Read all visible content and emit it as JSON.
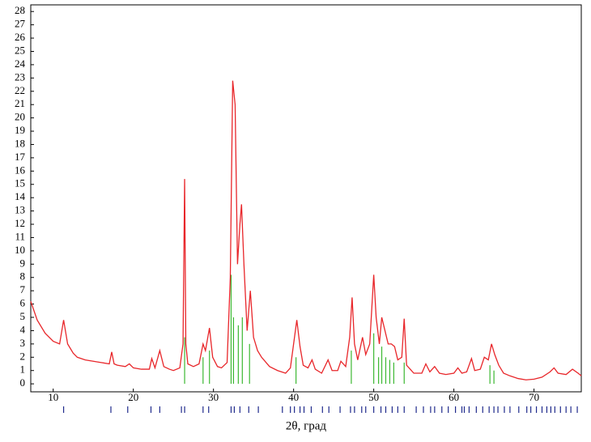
{
  "chart_data": {
    "type": "line",
    "xlabel": "2θ, град",
    "xlim": [
      7.2,
      75.9
    ],
    "ylim": [
      -0.6,
      28.5
    ],
    "xticks": [
      10,
      20,
      30,
      40,
      50,
      60,
      70
    ],
    "yticks": [
      0,
      1,
      2,
      3,
      4,
      5,
      6,
      7,
      8,
      9,
      10,
      11,
      12,
      13,
      14,
      15,
      16,
      17,
      18,
      19,
      20,
      21,
      22,
      23,
      24,
      25,
      26,
      27,
      28
    ],
    "series": [
      {
        "type": "line",
        "color": "#e8262a",
        "x": [
          7.2,
          8,
          9,
          10,
          10.8,
          11.3,
          11.8,
          12.5,
          13,
          14,
          15,
          16,
          17,
          17.3,
          17.6,
          18,
          19,
          19.5,
          20,
          21,
          22,
          22.3,
          22.7,
          23.3,
          23.8,
          24.5,
          25,
          25.8,
          26.2,
          26.4,
          26.55,
          26.8,
          27.5,
          28.2,
          28.7,
          29.0,
          29.5,
          29.9,
          30.5,
          31,
          31.7,
          32.1,
          32.4,
          32.7,
          33.0,
          33.3,
          33.5,
          33.8,
          34.2,
          34.6,
          35.0,
          35.5,
          36,
          37,
          38,
          39,
          39.6,
          40.0,
          40.4,
          40.8,
          41.2,
          41.8,
          42.3,
          42.7,
          43.5,
          44.3,
          44.8,
          45.5,
          45.9,
          46.5,
          47.0,
          47.3,
          47.6,
          48.0,
          48.6,
          49.0,
          49.5,
          50.0,
          50.3,
          50.7,
          51.0,
          51.4,
          51.8,
          52.2,
          52.6,
          53.0,
          53.5,
          53.8,
          54.1,
          55,
          56,
          56.5,
          57,
          57.6,
          58.2,
          59,
          60,
          60.5,
          61,
          61.6,
          62.2,
          62.6,
          63.3,
          63.8,
          64.3,
          64.7,
          65.1,
          65.6,
          66.2,
          67,
          68,
          69,
          70,
          71,
          72,
          72.5,
          73,
          74,
          74.8,
          75.5,
          75.9
        ],
        "values": [
          6.2,
          4.8,
          3.8,
          3.2,
          3.0,
          4.8,
          3.0,
          2.3,
          2.0,
          1.8,
          1.7,
          1.6,
          1.5,
          2.4,
          1.5,
          1.4,
          1.3,
          1.5,
          1.2,
          1.1,
          1.1,
          1.9,
          1.2,
          2.5,
          1.3,
          1.1,
          1.0,
          1.2,
          3.0,
          15.4,
          3.0,
          1.5,
          1.3,
          1.5,
          3.0,
          2.5,
          4.2,
          2.0,
          1.3,
          1.2,
          1.6,
          8.0,
          22.8,
          21.0,
          9.0,
          12.0,
          13.5,
          9.0,
          4.0,
          7.0,
          3.5,
          2.5,
          2.0,
          1.3,
          1.0,
          0.8,
          1.2,
          3.0,
          4.8,
          2.8,
          1.4,
          1.2,
          1.8,
          1.1,
          0.8,
          1.8,
          1.0,
          1.0,
          1.7,
          1.3,
          3.5,
          6.5,
          3.0,
          1.8,
          3.5,
          2.2,
          3.0,
          8.2,
          5.0,
          3.0,
          5.0,
          4.0,
          3.0,
          3.0,
          2.8,
          1.8,
          2.0,
          4.9,
          1.4,
          0.8,
          0.8,
          1.5,
          0.9,
          1.3,
          0.8,
          0.7,
          0.8,
          1.2,
          0.8,
          0.9,
          1.9,
          1.0,
          1.1,
          2.0,
          1.8,
          3.0,
          2.2,
          1.4,
          0.8,
          0.6,
          0.4,
          0.3,
          0.35,
          0.5,
          0.9,
          1.2,
          0.8,
          0.7,
          1.1,
          0.8,
          0.6
        ]
      },
      {
        "type": "stick",
        "color": "#3cb832",
        "x": [
          26.4,
          28.7,
          29.5,
          32.2,
          32.5,
          33.1,
          33.6,
          34.5,
          40.3,
          47.2,
          50.0,
          50.6,
          51.0,
          51.5,
          52.0,
          52.5,
          53.8,
          64.5,
          65.0
        ],
        "values": [
          3.5,
          2.0,
          2.5,
          8.2,
          5.0,
          4.4,
          5.0,
          3.0,
          2.0,
          2.5,
          3.8,
          2.0,
          2.8,
          2.0,
          1.8,
          1.6,
          1.6,
          1.4,
          1.0
        ]
      }
    ],
    "reflections": {
      "color": "#1f2a8c",
      "x": [
        11.3,
        17.2,
        19.3,
        22.2,
        23.3,
        26.0,
        26.4,
        28.7,
        29.4,
        32.2,
        32.6,
        33.3,
        34.4,
        35.6,
        38.6,
        39.6,
        40.1,
        40.8,
        41.3,
        42.2,
        43.6,
        44.4,
        45.8,
        47.1,
        47.6,
        48.5,
        49.0,
        50.0,
        50.9,
        51.5,
        52.3,
        53.0,
        53.8,
        55.3,
        56.2,
        57.1,
        57.6,
        58.5,
        59.3,
        60.2,
        61.0,
        61.3,
        61.9,
        62.8,
        63.6,
        64.4,
        65.0,
        65.5,
        66.3,
        67.0,
        68.1,
        69.1,
        69.6,
        70.3,
        71.0,
        71.6,
        72.1,
        72.6,
        73.3,
        74.0,
        74.6,
        75.4
      ]
    }
  }
}
